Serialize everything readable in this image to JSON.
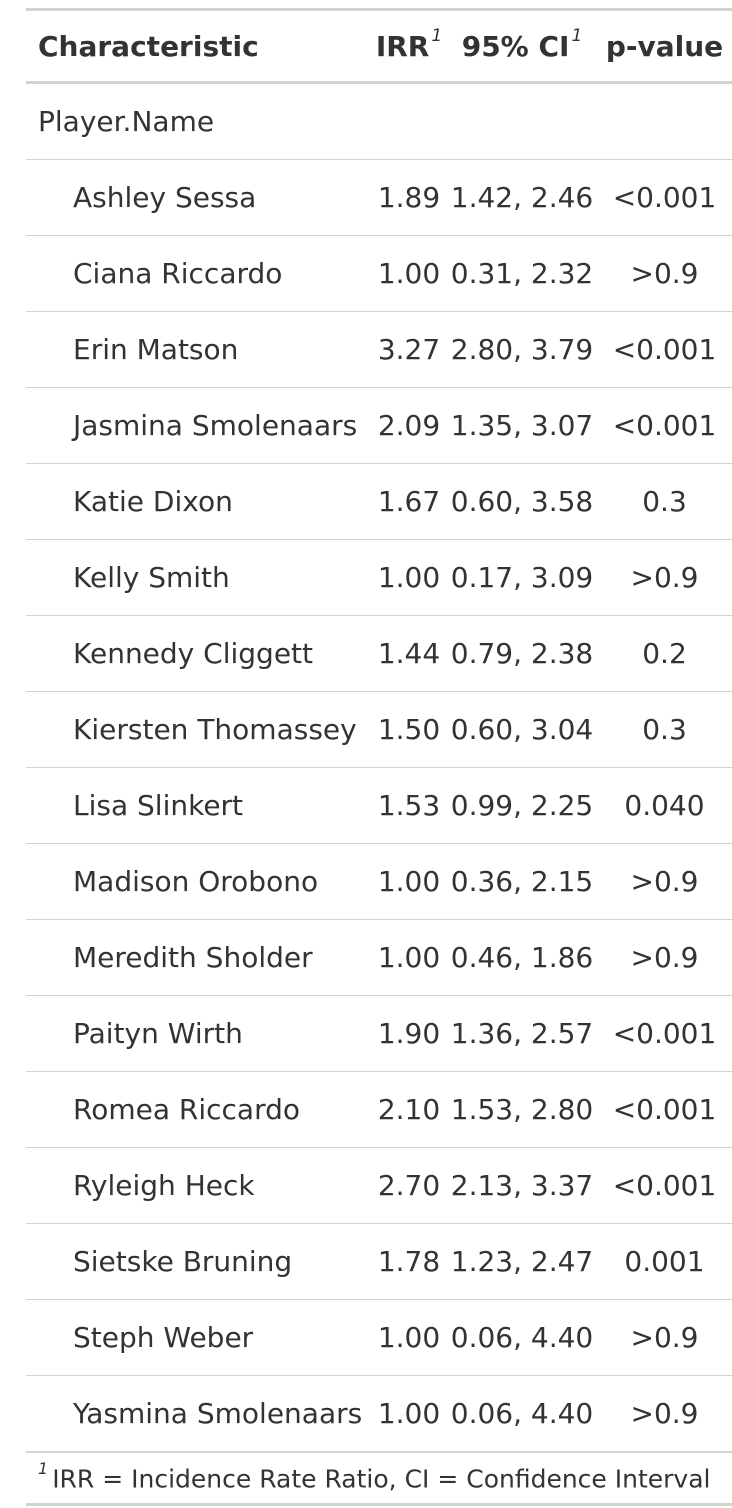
{
  "header": {
    "characteristic": "Characteristic",
    "irr": "IRR",
    "ci": "95% CI",
    "pvalue": "p-value",
    "footnote_mark": "1"
  },
  "group_label": "Player.Name",
  "rows": [
    {
      "name": "Ashley Sessa",
      "irr": "1.89",
      "ci": "1.42, 2.46",
      "p": "<0.001"
    },
    {
      "name": "Ciana Riccardo",
      "irr": "1.00",
      "ci": "0.31, 2.32",
      "p": ">0.9"
    },
    {
      "name": "Erin Matson",
      "irr": "3.27",
      "ci": "2.80, 3.79",
      "p": "<0.001"
    },
    {
      "name": "Jasmina Smolenaars",
      "irr": "2.09",
      "ci": "1.35, 3.07",
      "p": "<0.001"
    },
    {
      "name": "Katie Dixon",
      "irr": "1.67",
      "ci": "0.60, 3.58",
      "p": "0.3"
    },
    {
      "name": "Kelly Smith",
      "irr": "1.00",
      "ci": "0.17, 3.09",
      "p": ">0.9"
    },
    {
      "name": "Kennedy Cliggett",
      "irr": "1.44",
      "ci": "0.79, 2.38",
      "p": "0.2"
    },
    {
      "name": "Kiersten Thomassey",
      "irr": "1.50",
      "ci": "0.60, 3.04",
      "p": "0.3"
    },
    {
      "name": "Lisa Slinkert",
      "irr": "1.53",
      "ci": "0.99, 2.25",
      "p": "0.040"
    },
    {
      "name": "Madison Orobono",
      "irr": "1.00",
      "ci": "0.36, 2.15",
      "p": ">0.9"
    },
    {
      "name": "Meredith Sholder",
      "irr": "1.00",
      "ci": "0.46, 1.86",
      "p": ">0.9"
    },
    {
      "name": "Paityn Wirth",
      "irr": "1.90",
      "ci": "1.36, 2.57",
      "p": "<0.001"
    },
    {
      "name": "Romea Riccardo",
      "irr": "2.10",
      "ci": "1.53, 2.80",
      "p": "<0.001"
    },
    {
      "name": "Ryleigh Heck",
      "irr": "2.70",
      "ci": "2.13, 3.37",
      "p": "<0.001"
    },
    {
      "name": "Sietske Bruning",
      "irr": "1.78",
      "ci": "1.23, 2.47",
      "p": "0.001"
    },
    {
      "name": "Steph Weber",
      "irr": "1.00",
      "ci": "0.06, 4.40",
      "p": ">0.9"
    },
    {
      "name": "Yasmina Smolenaars",
      "irr": "1.00",
      "ci": "0.06, 4.40",
      "p": ">0.9"
    }
  ],
  "footnote": {
    "mark": "1",
    "text": "IRR = Incidence Rate Ratio, CI = Confidence Interval"
  }
}
